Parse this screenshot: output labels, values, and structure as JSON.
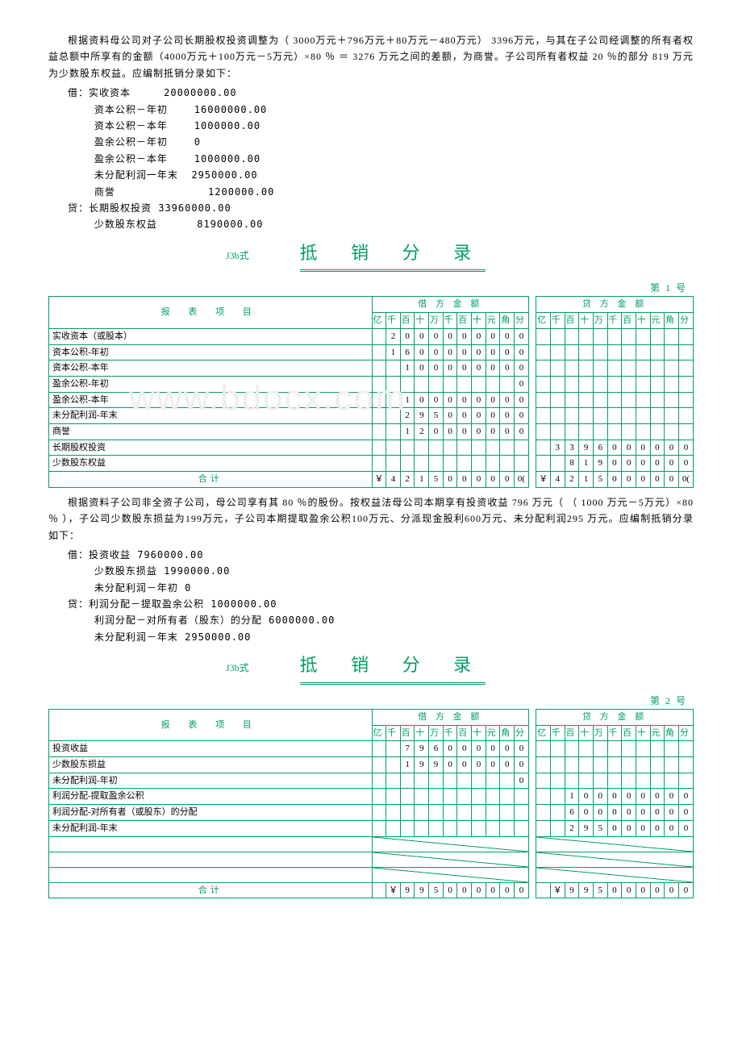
{
  "paragraphs": {
    "p1": "根据资料母公司对子公司长期股权投资调整为（ 3000万元＋796万元＋80万元－480万元） 3396万元，与其在子公司经调整的所有者权益总额中所享有的金额（4000万元＋100万元－5万元）×80 ％ ＝ 3276 万元之间的差额，为商誉。子公司所有者权益 20 ％的部分 819 万元为少数股东权益。应编制抵销分录如下：",
    "p2": "根据资料子公司非全资子公司，母公司享有其 80 ％的股份。按权益法母公司本期享有投资收益 796 万元（ （ 1000 万元－5万元）×80 ％ ），子公司少数股东损益为199万元，子公司本期提取盈余公积100万元、分派现金股利600万元、未分配利润295 万元。应编制抵销分录如下："
  },
  "entries1": [
    "借：实收资本     20000000.00",
    "    资本公积－年初    16000000.00",
    "    资本公积－本年    1000000.00",
    "    盈余公积－年初    0",
    "    盈余公积－本年    1000000.00",
    "    未分配利润一年末  2950000.00",
    "    商誉              1200000.00",
    "贷：长期股权投资 33960000.00",
    "    少数股东权益      8190000.00"
  ],
  "entries2": [
    "借：投资收益 7960000.00",
    "    少数股东损益 1990000.00",
    "    未分配利润－年初 0",
    "贷：利润分配－提取盈余公积 1000000.00",
    "    利润分配－对所有者（股东）的分配 6000000.00",
    "    未分配利润－年末 2950000.00"
  ],
  "form": {
    "label": "J3b式",
    "title": "抵 销 分 录",
    "header_item": "报 表 项 目",
    "header_debit": "借 方 金 额",
    "header_credit": "贷 方 金 额",
    "digit_labels": [
      "亿",
      "千",
      "百",
      "十",
      "万",
      "千",
      "百",
      "十",
      "元",
      "角",
      "分"
    ],
    "total_label": "合计",
    "yen": "￥"
  },
  "voucher1": {
    "page_no": "第 1 号",
    "rows": [
      {
        "name": "实收资本（或股本）",
        "debit": " 2000000000",
        "credit": ""
      },
      {
        "name": "资本公积-年初",
        "debit": " 1600000000",
        "credit": ""
      },
      {
        "name": "资本公积-本年",
        "debit": "  100000000",
        "credit": ""
      },
      {
        "name": "盈余公积-年初",
        "debit": "          0",
        "credit": ""
      },
      {
        "name": "盈余公积-本年",
        "debit": "  100000000",
        "credit": ""
      },
      {
        "name": "未分配利润-年末",
        "debit": "  295000000",
        "credit": ""
      },
      {
        "name": "商誉",
        "debit": "  120000000",
        "credit": ""
      },
      {
        "name": "长期股权投资",
        "debit": "",
        "credit": " 3396000000"
      },
      {
        "name": "少数股东权益",
        "debit": "",
        "credit": "  819000000"
      }
    ],
    "total_debit": " 4215000000",
    "total_credit": " 4215000000",
    "total_suffix": "("
  },
  "voucher2": {
    "page_no": "第 2 号",
    "rows": [
      {
        "name": "投资收益",
        "debit": "  796000000",
        "credit": ""
      },
      {
        "name": "少数股东损益",
        "debit": "  199000000",
        "credit": ""
      },
      {
        "name": "未分配利润-年初",
        "debit": "          0",
        "credit": ""
      },
      {
        "name": "利润分配-提取盈余公积",
        "debit": "",
        "credit": "  100000000"
      },
      {
        "name": "利润分配-对所有者（或股东）的分配",
        "debit": "",
        "credit": "  600000000"
      },
      {
        "name": "未分配利润-年末",
        "debit": "",
        "credit": "  295000000"
      },
      {
        "name": "",
        "debit": "diag",
        "credit": "diag"
      },
      {
        "name": "",
        "debit": "diag",
        "credit": "diag"
      },
      {
        "name": "",
        "debit": "diag",
        "credit": "diag"
      }
    ],
    "total_debit": "  995000000",
    "total_credit": "  995000000",
    "total_suffix": ""
  },
  "watermark": "www.bdocx.com",
  "colors": {
    "accent": "#00a060"
  }
}
